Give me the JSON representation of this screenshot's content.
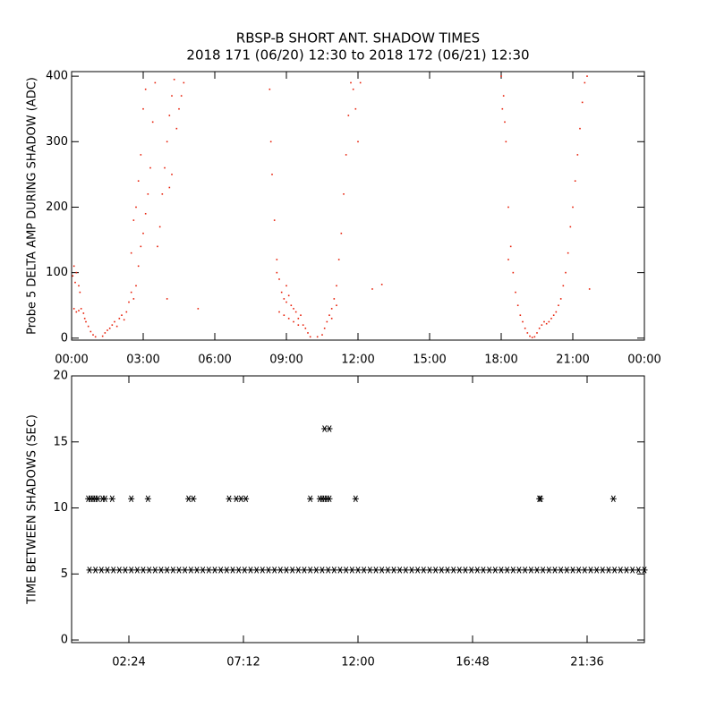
{
  "chart_data": [
    {
      "type": "scatter",
      "marker": "dot",
      "title": "RBSP-B SHORT ANT. SHADOW TIMES",
      "subtitle": "2018 171 (06/20) 12:30 to 2018 172 (06/21) 12:30",
      "ylabel": "Probe 5 DELTA AMP DURING SHADOW (ADC)",
      "color": "#e8200a",
      "xlim": [
        0,
        24
      ],
      "ylim": [
        -3,
        407
      ],
      "xticks": [
        {
          "value": 0,
          "label": "00:00"
        },
        {
          "value": 3,
          "label": "03:00"
        },
        {
          "value": 6,
          "label": "06:00"
        },
        {
          "value": 9,
          "label": "09:00"
        },
        {
          "value": 12,
          "label": "12:00"
        },
        {
          "value": 15,
          "label": "15:00"
        },
        {
          "value": 18,
          "label": "18:00"
        },
        {
          "value": 21,
          "label": "21:00"
        },
        {
          "value": 24,
          "label": "00:00"
        }
      ],
      "yticks": [
        0,
        100,
        200,
        300,
        400
      ],
      "x": [
        0.05,
        0.1,
        0.15,
        0.2,
        0.1,
        0.2,
        0.3,
        0.4,
        0.5,
        0.55,
        0.6,
        0.7,
        0.8,
        0.9,
        1.0,
        0.3,
        0.35,
        1.3,
        1.4,
        1.5,
        1.6,
        1.7,
        1.8,
        1.9,
        2.0,
        2.1,
        2.2,
        2.3,
        2.4,
        2.5,
        2.6,
        2.7,
        2.8,
        2.9,
        3.0,
        3.1,
        3.2,
        3.3,
        3.4,
        3.5,
        2.5,
        2.6,
        2.7,
        2.8,
        2.9,
        3.0,
        3.1,
        3.6,
        3.7,
        3.8,
        3.9,
        4.0,
        4.1,
        4.2,
        4.3,
        4.1,
        4.2,
        4.4,
        4.5,
        4.6,
        4.7,
        4.0,
        5.3,
        8.3,
        8.35,
        8.4,
        8.5,
        8.6,
        8.7,
        8.8,
        8.9,
        9.0,
        9.1,
        9.2,
        9.3,
        9.4,
        9.5,
        9.6,
        9.7,
        9.8,
        9.9,
        10.0,
        8.7,
        8.9,
        9.1,
        9.3,
        9.5,
        8.6,
        9.0,
        10.3,
        10.5,
        10.6,
        10.7,
        10.8,
        10.9,
        11.0,
        11.1,
        11.2,
        11.3,
        11.4,
        11.5,
        11.6,
        11.7,
        11.8,
        11.9,
        12.0,
        12.1,
        10.9,
        11.1,
        12.6,
        13.0,
        18.0,
        18.1,
        18.2,
        18.3,
        18.4,
        18.5,
        18.6,
        18.7,
        18.8,
        18.9,
        19.0,
        19.1,
        19.2,
        18.05,
        18.15,
        18.3,
        19.4,
        19.5,
        19.6,
        19.7,
        19.8,
        19.9,
        20.0,
        20.1,
        20.2,
        20.3,
        20.4,
        20.5,
        20.6,
        20.7,
        20.8,
        20.9,
        21.0,
        21.1,
        21.2,
        21.3,
        21.4,
        21.5,
        21.6,
        21.7,
        19.3
      ],
      "values": [
        95,
        110,
        85,
        100,
        45,
        40,
        42,
        45,
        38,
        30,
        25,
        18,
        10,
        5,
        2,
        80,
        70,
        3,
        8,
        12,
        15,
        20,
        25,
        18,
        30,
        35,
        28,
        40,
        55,
        70,
        60,
        80,
        110,
        140,
        160,
        190,
        220,
        260,
        330,
        390,
        130,
        180,
        200,
        240,
        280,
        350,
        380,
        140,
        170,
        220,
        260,
        300,
        340,
        370,
        395,
        230,
        250,
        320,
        350,
        370,
        390,
        60,
        45,
        380,
        300,
        250,
        180,
        120,
        90,
        70,
        60,
        55,
        65,
        50,
        45,
        40,
        30,
        35,
        20,
        15,
        8,
        2,
        40,
        35,
        30,
        25,
        20,
        100,
        80,
        2,
        5,
        15,
        25,
        35,
        45,
        60,
        80,
        120,
        160,
        220,
        280,
        340,
        390,
        380,
        350,
        300,
        390,
        30,
        50,
        75,
        82,
        400,
        370,
        300,
        200,
        140,
        100,
        70,
        50,
        35,
        25,
        15,
        8,
        3,
        350,
        330,
        120,
        2,
        8,
        15,
        20,
        25,
        22,
        25,
        30,
        35,
        40,
        50,
        60,
        80,
        100,
        130,
        170,
        200,
        240,
        280,
        320,
        360,
        390,
        400,
        75,
        1
      ]
    },
    {
      "type": "scatter",
      "marker": "asterisk",
      "ylabel": "TIME BETWEEN SHADOWS (SEC)",
      "color": "#000000",
      "xlim": [
        0,
        24
      ],
      "ylim": [
        -0.2,
        20
      ],
      "xticks": [
        {
          "value": 2.4,
          "label": "02:24"
        },
        {
          "value": 7.2,
          "label": "07:12"
        },
        {
          "value": 12,
          "label": "12:00"
        },
        {
          "value": 16.8,
          "label": "16:48"
        },
        {
          "value": 21.6,
          "label": "21:36"
        }
      ],
      "yticks": [
        0,
        5,
        10,
        15,
        20
      ],
      "x": [
        0.75,
        1.0,
        1.25,
        1.5,
        1.75,
        2.0,
        2.25,
        2.5,
        2.75,
        3.0,
        3.25,
        3.5,
        3.75,
        4.0,
        4.25,
        4.5,
        4.75,
        5.0,
        5.25,
        5.5,
        5.75,
        6.0,
        6.25,
        6.5,
        6.75,
        7.0,
        7.25,
        7.5,
        7.75,
        8.0,
        8.25,
        8.5,
        8.75,
        9.0,
        9.25,
        9.5,
        9.75,
        10.0,
        10.25,
        10.5,
        10.75,
        11.0,
        11.25,
        11.5,
        11.75,
        12.0,
        12.25,
        12.5,
        12.75,
        13.0,
        13.25,
        13.5,
        13.75,
        14.0,
        14.25,
        14.5,
        14.75,
        15.0,
        15.25,
        15.5,
        15.75,
        16.0,
        16.25,
        16.5,
        16.75,
        17.0,
        17.25,
        17.5,
        17.75,
        18.0,
        18.25,
        18.5,
        18.75,
        19.0,
        19.25,
        19.5,
        19.75,
        20.0,
        20.25,
        20.5,
        20.75,
        21.0,
        21.25,
        21.5,
        21.75,
        22.0,
        22.25,
        22.5,
        22.75,
        23.0,
        23.25,
        23.5,
        23.75,
        24.0,
        0.7,
        0.8,
        0.9,
        1.0,
        1.1,
        1.3,
        1.4,
        1.7,
        2.5,
        3.2,
        4.9,
        5.1,
        6.6,
        6.9,
        7.1,
        7.3,
        10.0,
        10.4,
        10.5,
        10.6,
        10.7,
        10.8,
        11.9,
        19.6,
        19.65,
        22.7,
        10.6,
        10.8
      ],
      "values": [
        5.3,
        5.3,
        5.3,
        5.3,
        5.3,
        5.3,
        5.3,
        5.3,
        5.3,
        5.3,
        5.3,
        5.3,
        5.3,
        5.3,
        5.3,
        5.3,
        5.3,
        5.3,
        5.3,
        5.3,
        5.3,
        5.3,
        5.3,
        5.3,
        5.3,
        5.3,
        5.3,
        5.3,
        5.3,
        5.3,
        5.3,
        5.3,
        5.3,
        5.3,
        5.3,
        5.3,
        5.3,
        5.3,
        5.3,
        5.3,
        5.3,
        5.3,
        5.3,
        5.3,
        5.3,
        5.3,
        5.3,
        5.3,
        5.3,
        5.3,
        5.3,
        5.3,
        5.3,
        5.3,
        5.3,
        5.3,
        5.3,
        5.3,
        5.3,
        5.3,
        5.3,
        5.3,
        5.3,
        5.3,
        5.3,
        5.3,
        5.3,
        5.3,
        5.3,
        5.3,
        5.3,
        5.3,
        5.3,
        5.3,
        5.3,
        5.3,
        5.3,
        5.3,
        5.3,
        5.3,
        5.3,
        5.3,
        5.3,
        5.3,
        5.3,
        5.3,
        5.3,
        5.3,
        5.3,
        5.3,
        5.3,
        5.3,
        5.3,
        5.3,
        10.7,
        10.7,
        10.7,
        10.7,
        10.7,
        10.7,
        10.7,
        10.7,
        10.7,
        10.7,
        10.7,
        10.7,
        10.7,
        10.7,
        10.7,
        10.7,
        10.7,
        10.7,
        10.7,
        10.7,
        10.7,
        10.7,
        10.7,
        10.7,
        10.7,
        10.7,
        16.0,
        16.0
      ]
    }
  ]
}
